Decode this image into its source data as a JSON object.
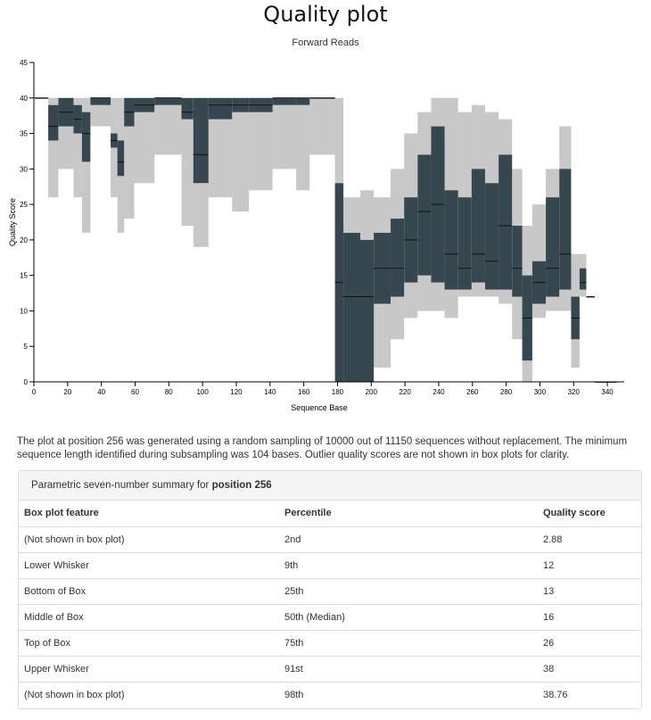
{
  "page": {
    "title": "Quality plot",
    "caption": "The plot at position 256 was generated using a random sampling of 10000 out of 11150 sequences without replacement. The minimum sequence length identified during subsampling was 104 bases. Outlier quality scores are not shown in box plots for clarity."
  },
  "chart_data": {
    "type": "box",
    "subtitle": "Forward Reads",
    "xlabel": "Sequence Base",
    "ylabel": "Quality Score",
    "xlim": [
      0,
      350
    ],
    "ylim": [
      0,
      45
    ],
    "xticks": [
      0,
      20,
      40,
      60,
      80,
      100,
      120,
      140,
      160,
      180,
      200,
      220,
      240,
      260,
      280,
      300,
      320,
      340
    ],
    "yticks": [
      0,
      5,
      10,
      15,
      20,
      25,
      30,
      35,
      40,
      45
    ],
    "grid": false,
    "colors": {
      "box": "#37474f",
      "whisker": "#555555",
      "axis": "#000000"
    },
    "segments": [
      {
        "x_start": 1,
        "x_end": 8,
        "whisker_low": 40,
        "q1": 40,
        "median": 40,
        "q3": 40,
        "whisker_high": 40
      },
      {
        "x_start": 9,
        "x_end": 14,
        "whisker_low": 26,
        "q1": 34,
        "median": 36,
        "q3": 39,
        "whisker_high": 40
      },
      {
        "x_start": 15,
        "x_end": 23,
        "whisker_low": 30,
        "q1": 36,
        "median": 38,
        "q3": 40,
        "whisker_high": 40
      },
      {
        "x_start": 24,
        "x_end": 28,
        "whisker_low": 26,
        "q1": 35,
        "median": 37,
        "q3": 39,
        "whisker_high": 40
      },
      {
        "x_start": 29,
        "x_end": 33,
        "whisker_low": 21,
        "q1": 31,
        "median": 35,
        "q3": 38,
        "whisker_high": 40
      },
      {
        "x_start": 34,
        "x_end": 45,
        "whisker_low": 36,
        "q1": 39,
        "median": 40,
        "q3": 40,
        "whisker_high": 40
      },
      {
        "x_start": 46,
        "x_end": 49,
        "whisker_low": 26,
        "q1": 33,
        "median": 34,
        "q3": 35,
        "whisker_high": 40
      },
      {
        "x_start": 50,
        "x_end": 53,
        "whisker_low": 21,
        "q1": 29,
        "median": 31,
        "q3": 34,
        "whisker_high": 40
      },
      {
        "x_start": 54,
        "x_end": 59,
        "whisker_low": 23,
        "q1": 36,
        "median": 38,
        "q3": 40,
        "whisker_high": 40
      },
      {
        "x_start": 60,
        "x_end": 71,
        "whisker_low": 28,
        "q1": 38,
        "median": 39,
        "q3": 40,
        "whisker_high": 40
      },
      {
        "x_start": 72,
        "x_end": 87,
        "whisker_low": 32,
        "q1": 39,
        "median": 40,
        "q3": 40,
        "whisker_high": 40
      },
      {
        "x_start": 88,
        "x_end": 94,
        "whisker_low": 22,
        "q1": 37,
        "median": 38,
        "q3": 40,
        "whisker_high": 40
      },
      {
        "x_start": 95,
        "x_end": 103,
        "whisker_low": 19,
        "q1": 28,
        "median": 32,
        "q3": 40,
        "whisker_high": 40
      },
      {
        "x_start": 104,
        "x_end": 117,
        "whisker_low": 26,
        "q1": 37,
        "median": 39,
        "q3": 40,
        "whisker_high": 40
      },
      {
        "x_start": 118,
        "x_end": 127,
        "whisker_low": 24,
        "q1": 38,
        "median": 39,
        "q3": 40,
        "whisker_high": 40
      },
      {
        "x_start": 128,
        "x_end": 141,
        "whisker_low": 27,
        "q1": 38,
        "median": 39,
        "q3": 40,
        "whisker_high": 40
      },
      {
        "x_start": 142,
        "x_end": 155,
        "whisker_low": 30,
        "q1": 39,
        "median": 40,
        "q3": 40,
        "whisker_high": 40
      },
      {
        "x_start": 156,
        "x_end": 163,
        "whisker_low": 27,
        "q1": 39,
        "median": 40,
        "q3": 40,
        "whisker_high": 40
      },
      {
        "x_start": 164,
        "x_end": 178,
        "whisker_low": 32,
        "q1": 40,
        "median": 40,
        "q3": 40,
        "whisker_high": 40
      },
      {
        "x_start": 179,
        "x_end": 183,
        "whisker_low": 0,
        "q1": 0,
        "median": 14,
        "q3": 28,
        "whisker_high": 40
      },
      {
        "x_start": 184,
        "x_end": 193,
        "whisker_low": 0,
        "q1": 0,
        "median": 12,
        "q3": 21,
        "whisker_high": 26
      },
      {
        "x_start": 194,
        "x_end": 201,
        "whisker_low": 0,
        "q1": 0,
        "median": 12,
        "q3": 20,
        "whisker_high": 27
      },
      {
        "x_start": 202,
        "x_end": 211,
        "whisker_low": 2,
        "q1": 11,
        "median": 16,
        "q3": 21,
        "whisker_high": 26
      },
      {
        "x_start": 212,
        "x_end": 219,
        "whisker_low": 6,
        "q1": 12,
        "median": 16,
        "q3": 23,
        "whisker_high": 30
      },
      {
        "x_start": 220,
        "x_end": 227,
        "whisker_low": 9,
        "q1": 14,
        "median": 20,
        "q3": 26,
        "whisker_high": 35
      },
      {
        "x_start": 228,
        "x_end": 235,
        "whisker_low": 10,
        "q1": 15,
        "median": 24,
        "q3": 32,
        "whisker_high": 38
      },
      {
        "x_start": 236,
        "x_end": 243,
        "whisker_low": 10,
        "q1": 14,
        "median": 25,
        "q3": 36,
        "whisker_high": 40
      },
      {
        "x_start": 244,
        "x_end": 251,
        "whisker_low": 9,
        "q1": 13,
        "median": 18,
        "q3": 27,
        "whisker_high": 40
      },
      {
        "x_start": 252,
        "x_end": 259,
        "whisker_low": 12,
        "q1": 13,
        "median": 16,
        "q3": 26,
        "whisker_high": 38
      },
      {
        "x_start": 260,
        "x_end": 267,
        "whisker_low": 12,
        "q1": 14,
        "median": 18,
        "q3": 30,
        "whisker_high": 39
      },
      {
        "x_start": 268,
        "x_end": 275,
        "whisker_low": 12,
        "q1": 13,
        "median": 17,
        "q3": 28,
        "whisker_high": 38
      },
      {
        "x_start": 276,
        "x_end": 283,
        "whisker_low": 11,
        "q1": 13,
        "median": 22,
        "q3": 32,
        "whisker_high": 37
      },
      {
        "x_start": 284,
        "x_end": 289,
        "whisker_low": 6,
        "q1": 12,
        "median": 16,
        "q3": 22,
        "whisker_high": 30
      },
      {
        "x_start": 290,
        "x_end": 295,
        "whisker_low": 0,
        "q1": 3,
        "median": 9,
        "q3": 15,
        "whisker_high": 22
      },
      {
        "x_start": 296,
        "x_end": 303,
        "whisker_low": 9,
        "q1": 11,
        "median": 14,
        "q3": 17,
        "whisker_high": 25
      },
      {
        "x_start": 304,
        "x_end": 311,
        "whisker_low": 10,
        "q1": 12,
        "median": 16,
        "q3": 26,
        "whisker_high": 30
      },
      {
        "x_start": 312,
        "x_end": 318,
        "whisker_low": 10,
        "q1": 13,
        "median": 18,
        "q3": 30,
        "whisker_high": 36
      },
      {
        "x_start": 319,
        "x_end": 323,
        "whisker_low": 2,
        "q1": 6,
        "median": 9,
        "q3": 12,
        "whisker_high": 18
      },
      {
        "x_start": 324,
        "x_end": 327,
        "whisker_low": 12,
        "q1": 13,
        "median": 14,
        "q3": 16,
        "whisker_high": 18
      },
      {
        "x_start": 328,
        "x_end": 332,
        "whisker_low": 12,
        "q1": 12,
        "median": 12,
        "q3": 12,
        "whisker_high": 12
      },
      {
        "x_start": 333,
        "x_end": 345,
        "whisker_low": 0,
        "q1": 0,
        "median": 0,
        "q3": 0,
        "whisker_high": 0
      }
    ]
  },
  "summary": {
    "heading_prefix": "Parametric seven-number summary for ",
    "heading_position": "position 256",
    "columns": [
      "Box plot feature",
      "Percentile",
      "Quality score"
    ],
    "rows": [
      [
        "(Not shown in box plot)",
        "2nd",
        "2.88"
      ],
      [
        "Lower Whisker",
        "9th",
        "12"
      ],
      [
        "Bottom of Box",
        "25th",
        "13"
      ],
      [
        "Middle of Box",
        "50th (Median)",
        "16"
      ],
      [
        "Top of Box",
        "75th",
        "26"
      ],
      [
        "Upper Whisker",
        "91st",
        "38"
      ],
      [
        "(Not shown in box plot)",
        "98th",
        "38.76"
      ]
    ]
  }
}
